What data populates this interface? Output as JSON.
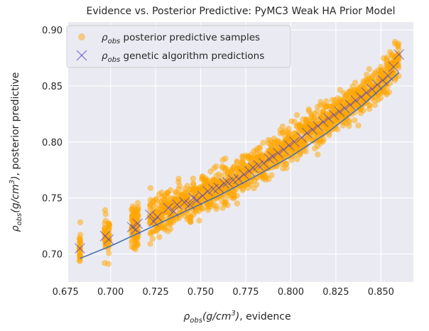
{
  "chart_data": {
    "type": "scatter",
    "title": "Evidence vs. Posterior Predictive: PyMC3 Weak HA Prior Model",
    "xlabel": "ρobs(g/cm3), evidence",
    "ylabel": "ρobs(g/cm3), posterior predictive",
    "xlim": [
      0.6765,
      0.868
    ],
    "ylim": [
      0.675,
      0.907
    ],
    "xticks": [
      "0.675",
      "0.700",
      "0.725",
      "0.750",
      "0.775",
      "0.800",
      "0.825",
      "0.850"
    ],
    "yticks": [
      "0.70",
      "0.75",
      "0.80",
      "0.85",
      "0.90"
    ],
    "grid": true,
    "legend_position": "top-left",
    "background_color": "#eaeaf2",
    "series": [
      {
        "name": "ρobs posterior predictive samples",
        "type": "scatter",
        "color": "#ffa500",
        "marker": "circle",
        "x_range": [
          0.683,
          0.86
        ],
        "spread_note": "vertical band of samples around each evidence value, approx ±0.022"
      },
      {
        "name": "ρobs genetic algorithm predictions",
        "type": "scatter",
        "color": "#4a38c8",
        "marker": "x",
        "points": [
          [
            0.683,
            0.705
          ],
          [
            0.697,
            0.716
          ],
          [
            0.699,
            0.713
          ],
          [
            0.712,
            0.724
          ],
          [
            0.714,
            0.722
          ],
          [
            0.715,
            0.727
          ],
          [
            0.722,
            0.735
          ],
          [
            0.724,
            0.729
          ],
          [
            0.726,
            0.733
          ],
          [
            0.732,
            0.741
          ],
          [
            0.735,
            0.738
          ],
          [
            0.737,
            0.744
          ],
          [
            0.741,
            0.746
          ],
          [
            0.744,
            0.744
          ],
          [
            0.746,
            0.75
          ],
          [
            0.748,
            0.748
          ],
          [
            0.751,
            0.752
          ],
          [
            0.754,
            0.756
          ],
          [
            0.757,
            0.758
          ],
          [
            0.76,
            0.759
          ],
          [
            0.763,
            0.763
          ],
          [
            0.765,
            0.764
          ],
          [
            0.768,
            0.766
          ],
          [
            0.771,
            0.767
          ],
          [
            0.774,
            0.771
          ],
          [
            0.777,
            0.774
          ],
          [
            0.779,
            0.777
          ],
          [
            0.782,
            0.779
          ],
          [
            0.785,
            0.781
          ],
          [
            0.788,
            0.785
          ],
          [
            0.79,
            0.787
          ],
          [
            0.793,
            0.79
          ],
          [
            0.796,
            0.793
          ],
          [
            0.799,
            0.797
          ],
          [
            0.802,
            0.8
          ],
          [
            0.806,
            0.804
          ],
          [
            0.809,
            0.808
          ],
          [
            0.812,
            0.811
          ],
          [
            0.815,
            0.814
          ],
          [
            0.818,
            0.818
          ],
          [
            0.821,
            0.821
          ],
          [
            0.824,
            0.824
          ],
          [
            0.827,
            0.827
          ],
          [
            0.83,
            0.83
          ],
          [
            0.833,
            0.833
          ],
          [
            0.836,
            0.837
          ],
          [
            0.839,
            0.84
          ],
          [
            0.842,
            0.844
          ],
          [
            0.845,
            0.847
          ],
          [
            0.848,
            0.851
          ],
          [
            0.851,
            0.855
          ],
          [
            0.854,
            0.859
          ],
          [
            0.857,
            0.867
          ],
          [
            0.86,
            0.878
          ]
        ]
      },
      {
        "name": "",
        "type": "line",
        "color": "#4c72b0",
        "points": [
          [
            0.683,
            0.696
          ],
          [
            0.7,
            0.707
          ],
          [
            0.72,
            0.722
          ],
          [
            0.74,
            0.737
          ],
          [
            0.76,
            0.752
          ],
          [
            0.78,
            0.769
          ],
          [
            0.8,
            0.787
          ],
          [
            0.82,
            0.808
          ],
          [
            0.84,
            0.833
          ],
          [
            0.86,
            0.862
          ]
        ]
      }
    ]
  }
}
